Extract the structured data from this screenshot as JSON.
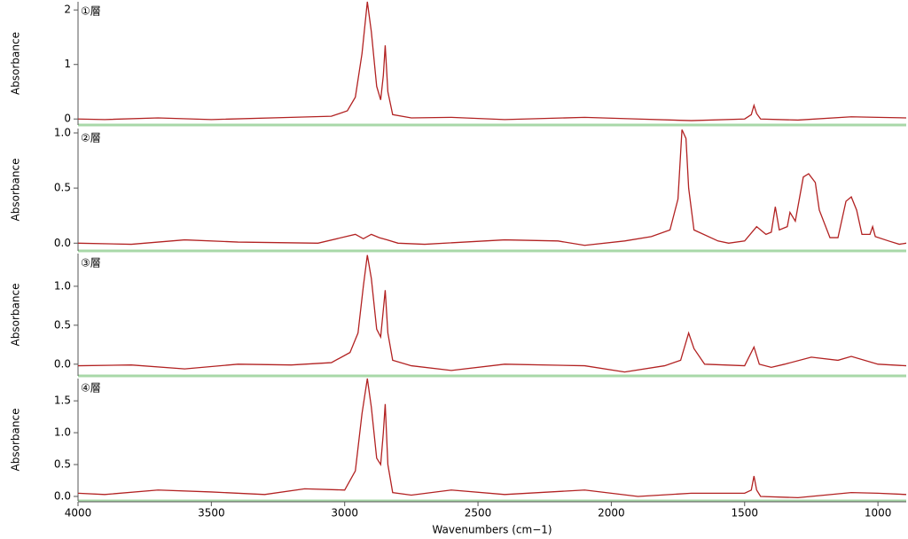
{
  "chart_data": [
    {
      "type": "line",
      "title": "①層",
      "y_label": "Absorbance",
      "color": "#b22222",
      "x": [
        4000,
        3900,
        3700,
        3500,
        3200,
        3050,
        2990,
        2960,
        2935,
        2915,
        2900,
        2880,
        2865,
        2855,
        2848,
        2838,
        2820,
        2750,
        2600,
        2400,
        2100,
        1900,
        1700,
        1500,
        1475,
        1465,
        1455,
        1440,
        1300,
        1100,
        1000,
        894
      ],
      "values": [
        0.0,
        -0.01,
        0.02,
        -0.01,
        0.03,
        0.05,
        0.15,
        0.4,
        1.2,
        2.15,
        1.6,
        0.6,
        0.35,
        0.8,
        1.35,
        0.5,
        0.08,
        0.02,
        0.03,
        -0.01,
        0.03,
        0.0,
        -0.03,
        0.0,
        0.08,
        0.25,
        0.1,
        0.0,
        -0.02,
        0.04,
        0.03,
        0.02
      ],
      "xlim": [
        4000,
        894
      ],
      "ylim": [
        -0.11,
        2.15
      ],
      "yticks": [
        0,
        1,
        2
      ]
    },
    {
      "type": "line",
      "title": "②層",
      "y_label": "Absorbance",
      "color": "#b22222",
      "x": [
        4000,
        3800,
        3600,
        3400,
        3100,
        2960,
        2930,
        2900,
        2870,
        2840,
        2800,
        2700,
        2400,
        2200,
        2100,
        1950,
        1850,
        1780,
        1750,
        1735,
        1720,
        1710,
        1690,
        1600,
        1560,
        1500,
        1455,
        1420,
        1400,
        1385,
        1370,
        1340,
        1330,
        1310,
        1280,
        1260,
        1235,
        1220,
        1180,
        1150,
        1120,
        1100,
        1080,
        1060,
        1030,
        1020,
        1010,
        960,
        920,
        894
      ],
      "values": [
        0.0,
        -0.01,
        0.03,
        0.01,
        0.0,
        0.08,
        0.04,
        0.08,
        0.05,
        0.03,
        0.0,
        -0.01,
        0.03,
        0.02,
        -0.02,
        0.02,
        0.06,
        0.12,
        0.4,
        1.03,
        0.95,
        0.5,
        0.12,
        0.02,
        0.0,
        0.02,
        0.15,
        0.08,
        0.1,
        0.33,
        0.12,
        0.15,
        0.28,
        0.2,
        0.6,
        0.63,
        0.55,
        0.3,
        0.05,
        0.05,
        0.38,
        0.42,
        0.3,
        0.08,
        0.08,
        0.15,
        0.06,
        0.02,
        -0.01,
        0.0
      ],
      "xlim": [
        4000,
        894
      ],
      "ylim": [
        -0.07,
        1.04
      ],
      "yticks": [
        {
          "value": 0,
          "label": "0.0"
        },
        {
          "value": 0.5,
          "label": "0.5"
        },
        {
          "value": 1,
          "label": "1.0"
        }
      ]
    },
    {
      "type": "line",
      "title": "③層",
      "y_label": "Absorbance",
      "color": "#b22222",
      "x": [
        4000,
        3800,
        3600,
        3400,
        3200,
        3050,
        2980,
        2950,
        2930,
        2915,
        2900,
        2880,
        2865,
        2855,
        2848,
        2838,
        2820,
        2750,
        2600,
        2400,
        2100,
        1950,
        1800,
        1740,
        1710,
        1690,
        1650,
        1500,
        1465,
        1445,
        1400,
        1350,
        1250,
        1150,
        1100,
        1000,
        894
      ],
      "values": [
        -0.02,
        -0.01,
        -0.06,
        0.0,
        -0.01,
        0.02,
        0.15,
        0.4,
        1.0,
        1.4,
        1.1,
        0.45,
        0.35,
        0.7,
        0.95,
        0.4,
        0.05,
        -0.02,
        -0.08,
        0.0,
        -0.02,
        -0.1,
        -0.02,
        0.05,
        0.4,
        0.2,
        0.0,
        -0.02,
        0.22,
        0.0,
        -0.04,
        0.0,
        0.09,
        0.05,
        0.1,
        0.0,
        -0.02
      ],
      "xlim": [
        4000,
        894
      ],
      "ylim": [
        -0.15,
        1.42
      ],
      "yticks": [
        {
          "value": 0,
          "label": "0.0"
        },
        {
          "value": 0.5,
          "label": "0.5"
        },
        {
          "value": 1,
          "label": "1.0"
        }
      ]
    },
    {
      "type": "line",
      "title": "④層",
      "y_label": "Absorbance",
      "x_label": "Wavenumbers (cm−1)",
      "color": "#b22222",
      "x": [
        4000,
        3900,
        3700,
        3500,
        3300,
        3150,
        3000,
        2960,
        2935,
        2915,
        2900,
        2880,
        2865,
        2855,
        2848,
        2838,
        2820,
        2750,
        2600,
        2400,
        2100,
        1900,
        1700,
        1500,
        1475,
        1465,
        1455,
        1440,
        1300,
        1100,
        1000,
        894
      ],
      "values": [
        0.05,
        0.03,
        0.1,
        0.07,
        0.03,
        0.12,
        0.1,
        0.4,
        1.3,
        1.85,
        1.4,
        0.6,
        0.5,
        1.0,
        1.45,
        0.5,
        0.06,
        0.02,
        0.1,
        0.03,
        0.1,
        0.0,
        0.05,
        0.05,
        0.1,
        0.32,
        0.1,
        0.0,
        -0.02,
        0.06,
        0.05,
        0.03
      ],
      "xlim": [
        4000,
        894
      ],
      "ylim": [
        -0.07,
        1.85
      ],
      "yticks": [
        {
          "value": 0,
          "label": "0.0"
        },
        {
          "value": 0.5,
          "label": "0.5"
        },
        {
          "value": 1,
          "label": "1.0"
        },
        {
          "value": 1.5,
          "label": "1.5"
        }
      ],
      "xticks": [
        4000,
        3500,
        3000,
        2500,
        2000,
        1500,
        1000
      ]
    }
  ]
}
